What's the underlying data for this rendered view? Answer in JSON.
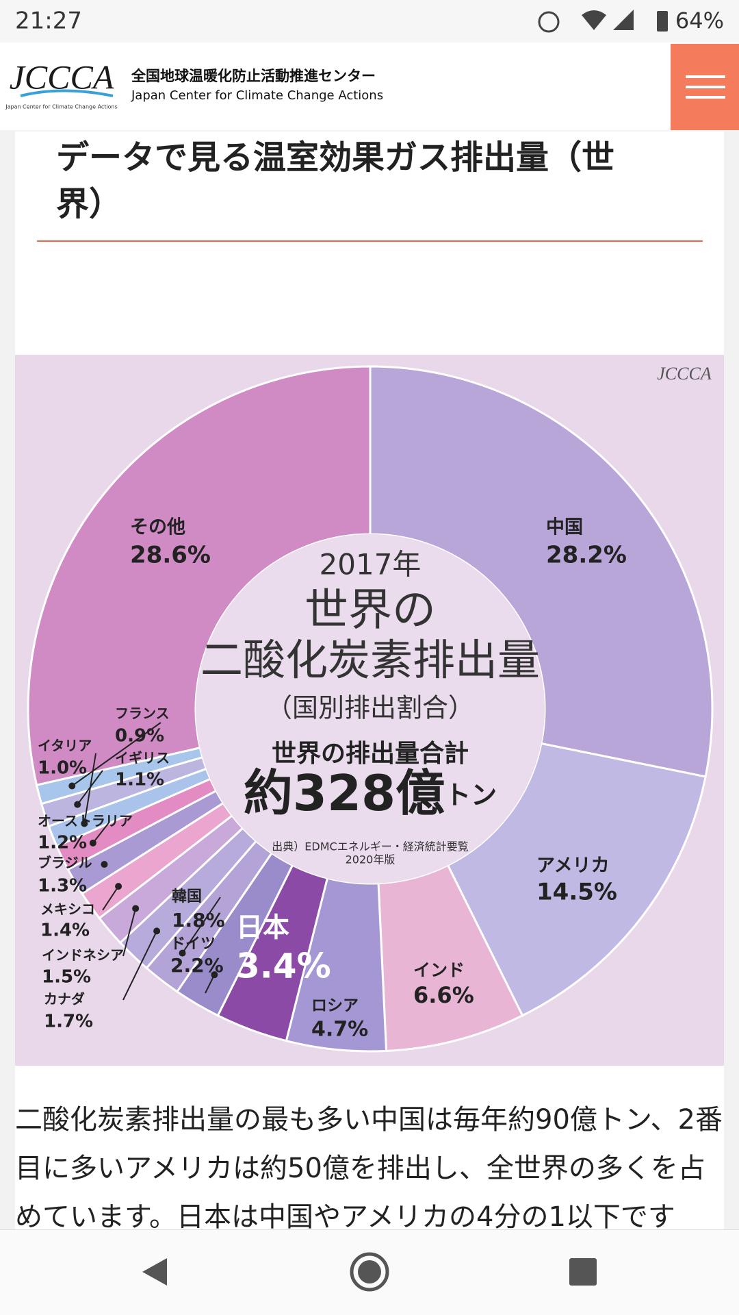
{
  "status_bar": {
    "time": "21:27",
    "battery": "64%"
  },
  "header": {
    "logo": "JCCCA",
    "name_ja": "全国地球温暖化防止活動推進センター",
    "name_en": "Japan Center for Climate Change Actions"
  },
  "page_title": "データで見る温室効果ガス排出量（世界）",
  "chart_data": {
    "type": "pie",
    "title": [
      "2017年",
      "世界の",
      "二酸化炭素排出量"
    ],
    "subtitle": "（国別排出割合）",
    "total_label": "世界の排出量合計",
    "total_value": "約328億",
    "total_unit": "トン",
    "source": [
      "出典）EDMCエネルギー・経済統計要覧",
      "2020年版"
    ],
    "logo": "JCCCA",
    "categories": [
      "中国",
      "アメリカ",
      "インド",
      "ロシア",
      "日本",
      "ドイツ",
      "韓国",
      "カナダ",
      "インドネシア",
      "メキシコ",
      "ブラジル",
      "オーストラリア",
      "イタリア",
      "イギリス",
      "フランス",
      "その他"
    ],
    "values": [
      28.2,
      14.5,
      6.6,
      4.7,
      3.4,
      2.2,
      1.8,
      1.7,
      1.5,
      1.4,
      1.3,
      1.2,
      1.0,
      1.1,
      0.9,
      28.6
    ],
    "value_labels": [
      "28.2%",
      "14.5%",
      "6.6%",
      "4.7%",
      "3.4%",
      "2.2%",
      "1.8%",
      "1.7%",
      "1.5%",
      "1.4%",
      "1.3%",
      "1.2%",
      "1.0%",
      "1.1%",
      "0.9%",
      "28.6%"
    ],
    "colors": [
      "#b8a6d9",
      "#c0b9e4",
      "#e9b5d5",
      "#a596d4",
      "#8a4aa6",
      "#9a8ccb",
      "#b4a3d6",
      "#b7abdc",
      "#c9a9d9",
      "#eaa6cf",
      "#a99ad3",
      "#e38cc3",
      "#a9c3ea",
      "#bcb5e0",
      "#a8c6ec",
      "#d08ac4"
    ]
  },
  "body_text": "二酸化炭素排出量の最も多い中国は毎年約90億トン、2番目に多いアメリカは約50億を排出し、全世界の多くを占めています。日本は中国やアメリカの4分の1以下です"
}
